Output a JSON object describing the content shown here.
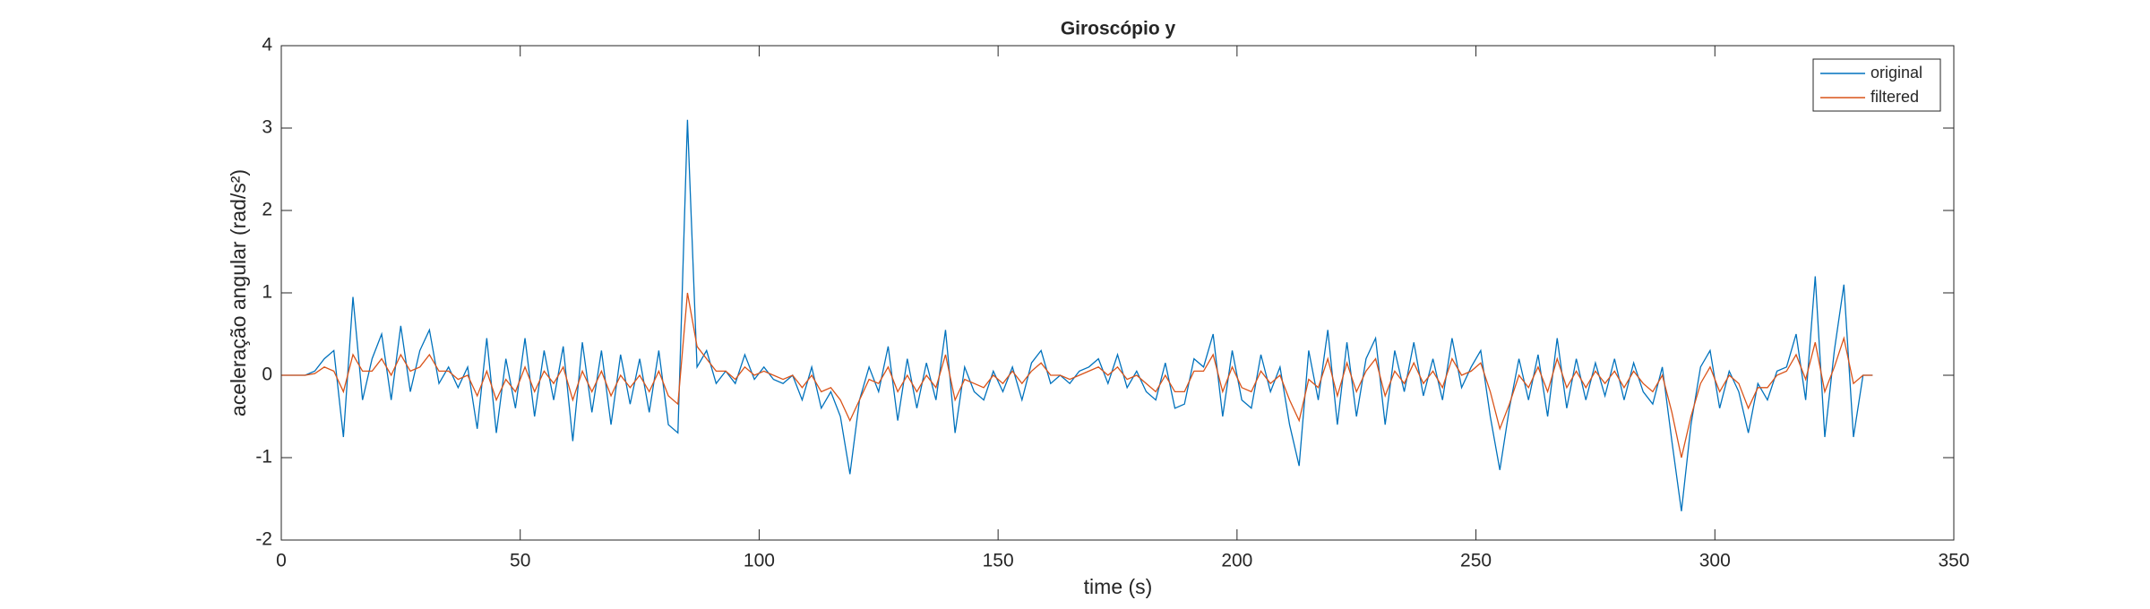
{
  "chart_data": {
    "type": "line",
    "title": "Giroscópio y",
    "xlabel": "time (s)",
    "ylabel": "aceleração angular (rad/s²)",
    "x": [
      0,
      1,
      3,
      5,
      7,
      9,
      11,
      13,
      15,
      17,
      19,
      21,
      23,
      25,
      27,
      29,
      31,
      33,
      35,
      37,
      39,
      41,
      43,
      45,
      47,
      49,
      51,
      53,
      55,
      57,
      59,
      61,
      63,
      65,
      67,
      69,
      71,
      73,
      75,
      77,
      79,
      81,
      83,
      85,
      87,
      89,
      91,
      93,
      95,
      97,
      99,
      101,
      103,
      105,
      107,
      109,
      111,
      113,
      115,
      117,
      119,
      121,
      123,
      125,
      127,
      129,
      131,
      133,
      135,
      137,
      139,
      141,
      143,
      145,
      147,
      149,
      151,
      153,
      155,
      157,
      159,
      161,
      163,
      165,
      167,
      169,
      171,
      173,
      175,
      177,
      179,
      181,
      183,
      185,
      187,
      189,
      191,
      193,
      195,
      197,
      199,
      201,
      203,
      205,
      207,
      209,
      211,
      213,
      215,
      217,
      219,
      221,
      223,
      225,
      227,
      229,
      231,
      233,
      235,
      237,
      239,
      241,
      243,
      245,
      247,
      249,
      251,
      253,
      255,
      257,
      259,
      261,
      263,
      265,
      267,
      269,
      271,
      273,
      275,
      277,
      279,
      281,
      283,
      285,
      287,
      289,
      291,
      293,
      295,
      297,
      299,
      301,
      303,
      305,
      307,
      309,
      311,
      313,
      315,
      317,
      319,
      321,
      323,
      325,
      327,
      329,
      331,
      333
    ],
    "series": [
      {
        "name": "original",
        "color": "#0072BD",
        "values": [
          0,
          0,
          0,
          0,
          0.05,
          0.2,
          0.3,
          -0.75,
          0.95,
          -0.3,
          0.2,
          0.5,
          -0.3,
          0.6,
          -0.2,
          0.3,
          0.55,
          -0.1,
          0.1,
          -0.15,
          0.1,
          -0.65,
          0.45,
          -0.7,
          0.2,
          -0.4,
          0.45,
          -0.5,
          0.3,
          -0.3,
          0.35,
          -0.8,
          0.4,
          -0.45,
          0.3,
          -0.6,
          0.25,
          -0.35,
          0.2,
          -0.45,
          0.3,
          -0.6,
          -0.7,
          3.1,
          0.1,
          0.3,
          -0.1,
          0.05,
          -0.1,
          0.25,
          -0.05,
          0.1,
          -0.05,
          -0.1,
          0,
          -0.3,
          0.1,
          -0.4,
          -0.2,
          -0.5,
          -1.2,
          -0.3,
          0.1,
          -0.2,
          0.35,
          -0.55,
          0.2,
          -0.4,
          0.15,
          -0.3,
          0.55,
          -0.7,
          0.1,
          -0.2,
          -0.3,
          0.05,
          -0.2,
          0.1,
          -0.3,
          0.15,
          0.3,
          -0.1,
          0,
          -0.1,
          0.05,
          0.1,
          0.2,
          -0.1,
          0.25,
          -0.15,
          0.05,
          -0.2,
          -0.3,
          0.15,
          -0.4,
          -0.35,
          0.2,
          0.1,
          0.5,
          -0.5,
          0.3,
          -0.3,
          -0.4,
          0.25,
          -0.2,
          0.1,
          -0.6,
          -1.1,
          0.3,
          -0.3,
          0.55,
          -0.6,
          0.4,
          -0.5,
          0.2,
          0.45,
          -0.6,
          0.3,
          -0.2,
          0.4,
          -0.25,
          0.2,
          -0.3,
          0.45,
          -0.15,
          0.1,
          0.3,
          -0.5,
          -1.15,
          -0.4,
          0.2,
          -0.3,
          0.25,
          -0.5,
          0.45,
          -0.4,
          0.2,
          -0.3,
          0.15,
          -0.25,
          0.2,
          -0.3,
          0.15,
          -0.2,
          -0.35,
          0.1,
          -0.8,
          -1.65,
          -0.6,
          0.1,
          0.3,
          -0.4,
          0.05,
          -0.2,
          -0.7,
          -0.1,
          -0.3,
          0.05,
          0.1,
          0.5,
          -0.3,
          1.2,
          -0.75,
          0.3,
          1.1,
          -0.75,
          0,
          0
        ]
      },
      {
        "name": "filtered",
        "color": "#D95319",
        "values": [
          0,
          0,
          0,
          0,
          0.02,
          0.1,
          0.05,
          -0.2,
          0.25,
          0.05,
          0.05,
          0.2,
          0,
          0.25,
          0.05,
          0.1,
          0.25,
          0.05,
          0.05,
          -0.05,
          0,
          -0.25,
          0.05,
          -0.3,
          -0.05,
          -0.2,
          0.1,
          -0.2,
          0.05,
          -0.1,
          0.1,
          -0.3,
          0.05,
          -0.2,
          0.05,
          -0.25,
          0,
          -0.15,
          0,
          -0.2,
          0.05,
          -0.25,
          -0.35,
          1.0,
          0.35,
          0.2,
          0.05,
          0.05,
          -0.05,
          0.1,
          0,
          0.05,
          0,
          -0.05,
          0,
          -0.15,
          0,
          -0.2,
          -0.15,
          -0.3,
          -0.55,
          -0.3,
          -0.05,
          -0.1,
          0.1,
          -0.2,
          0,
          -0.2,
          0,
          -0.15,
          0.25,
          -0.3,
          -0.05,
          -0.1,
          -0.15,
          0,
          -0.1,
          0.05,
          -0.1,
          0.05,
          0.15,
          0,
          0,
          -0.05,
          0,
          0.05,
          0.1,
          0,
          0.1,
          -0.05,
          0,
          -0.1,
          -0.2,
          0,
          -0.2,
          -0.2,
          0.05,
          0.05,
          0.25,
          -0.2,
          0.1,
          -0.15,
          -0.2,
          0.05,
          -0.1,
          0,
          -0.3,
          -0.55,
          -0.05,
          -0.15,
          0.2,
          -0.25,
          0.15,
          -0.2,
          0.05,
          0.2,
          -0.25,
          0.05,
          -0.1,
          0.15,
          -0.1,
          0.05,
          -0.15,
          0.2,
          0,
          0.05,
          0.15,
          -0.2,
          -0.65,
          -0.35,
          0,
          -0.15,
          0.1,
          -0.2,
          0.2,
          -0.15,
          0.05,
          -0.15,
          0.05,
          -0.1,
          0.05,
          -0.15,
          0.05,
          -0.1,
          -0.2,
          0,
          -0.45,
          -1.0,
          -0.5,
          -0.1,
          0.1,
          -0.2,
          0,
          -0.1,
          -0.4,
          -0.15,
          -0.15,
          0,
          0.05,
          0.25,
          -0.05,
          0.4,
          -0.2,
          0.1,
          0.45,
          -0.1,
          0,
          0
        ]
      }
    ],
    "xlim": [
      0,
      350
    ],
    "xticks": [
      0,
      50,
      100,
      150,
      200,
      250,
      300,
      350
    ],
    "ylim": [
      -2,
      4
    ],
    "yticks": [
      -2,
      -1,
      0,
      1,
      2,
      3,
      4
    ],
    "legend": "top-right"
  }
}
